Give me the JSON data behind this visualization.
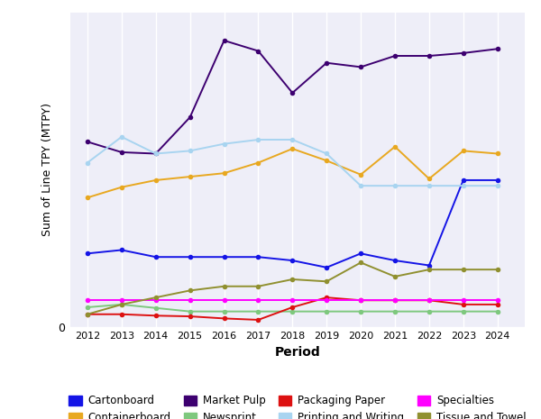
{
  "years": [
    2012,
    2013,
    2014,
    2015,
    2016,
    2017,
    2018,
    2019,
    2020,
    2021,
    2022,
    2023,
    2024
  ],
  "series": {
    "Cartonboard": {
      "color": "#1414e6",
      "values": [
        1.05,
        1.1,
        1.0,
        1.0,
        1.0,
        1.0,
        0.95,
        0.85,
        1.05,
        0.95,
        0.88,
        2.1,
        2.1
      ]
    },
    "Containerboard": {
      "color": "#e8a820",
      "values": [
        1.85,
        2.0,
        2.1,
        2.15,
        2.2,
        2.35,
        2.55,
        2.38,
        2.18,
        2.58,
        2.12,
        2.52,
        2.48
      ]
    },
    "Market Pulp": {
      "color": "#3d0070",
      "values": [
        2.65,
        2.5,
        2.48,
        3.0,
        4.1,
        3.95,
        3.35,
        3.78,
        3.72,
        3.88,
        3.88,
        3.92,
        3.98
      ]
    },
    "Newsprint": {
      "color": "#7ec87e",
      "values": [
        0.28,
        0.32,
        0.27,
        0.22,
        0.22,
        0.22,
        0.22,
        0.22,
        0.22,
        0.22,
        0.22,
        0.22,
        0.22
      ]
    },
    "Packaging Paper": {
      "color": "#dd1111",
      "values": [
        0.18,
        0.18,
        0.16,
        0.15,
        0.12,
        0.1,
        0.28,
        0.42,
        0.38,
        0.38,
        0.38,
        0.32,
        0.32
      ]
    },
    "Printing and Writing": {
      "color": "#a8d4f0",
      "values": [
        2.35,
        2.72,
        2.48,
        2.52,
        2.62,
        2.68,
        2.68,
        2.48,
        2.02,
        2.02,
        2.02,
        2.02,
        2.02
      ]
    },
    "Specialties": {
      "color": "#ff00ff",
      "values": [
        0.38,
        0.38,
        0.38,
        0.38,
        0.38,
        0.38,
        0.38,
        0.38,
        0.38,
        0.38,
        0.38,
        0.38,
        0.38
      ]
    },
    "Tissue and Towel": {
      "color": "#909030",
      "values": [
        0.18,
        0.32,
        0.42,
        0.52,
        0.58,
        0.58,
        0.68,
        0.65,
        0.92,
        0.72,
        0.82,
        0.82,
        0.82
      ]
    }
  },
  "xlabel": "Period",
  "ylabel": "Sum of Line TPY (MTPY)",
  "plot_bg_color": "#eeeef8",
  "fig_bg_color": "#ffffff",
  "grid_color": "#ffffff",
  "ylim": [
    0,
    4.5
  ],
  "xlim": [
    2011.5,
    2024.8
  ],
  "legend_order": [
    "Cartonboard",
    "Containerboard",
    "Market Pulp",
    "Newsprint",
    "Packaging Paper",
    "Printing and Writing",
    "Specialties",
    "Tissue and Towel"
  ]
}
